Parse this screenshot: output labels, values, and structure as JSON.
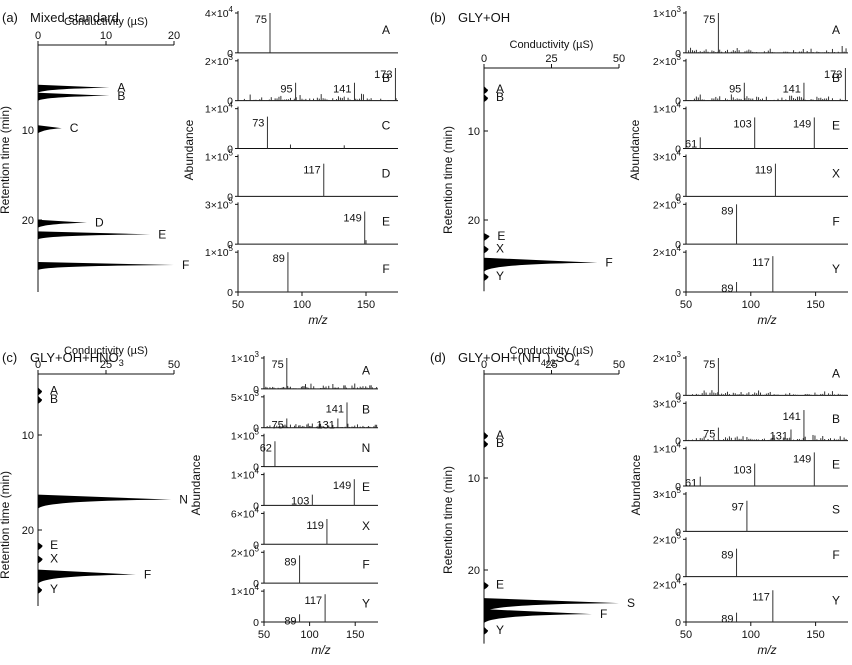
{
  "chart_data": [
    {
      "type": "area",
      "panel": "(a)",
      "title": "Mixed standard",
      "xlabel": "Conductivity (µS)",
      "ylabel": "Retention time (min)",
      "xlim": [
        0,
        20
      ],
      "ylim": [
        0,
        28
      ],
      "xticks": [
        "0",
        "10",
        "20"
      ],
      "yticks": [
        "10",
        "20"
      ],
      "yticks_values": [
        10,
        20
      ],
      "peaks": [
        {
          "label": "A",
          "rt": 5.3,
          "height": 10.5
        },
        {
          "label": "B",
          "rt": 6.2,
          "height": 10.5
        },
        {
          "label": "C",
          "rt": 9.8,
          "height": 3.5
        },
        {
          "label": "D",
          "rt": 20.3,
          "height": 7.2
        },
        {
          "label": "E",
          "rt": 21.6,
          "height": 16.5
        },
        {
          "label": "F",
          "rt": 25.0,
          "height": 20.0
        }
      ]
    },
    {
      "type": "bar",
      "panel": "(a)",
      "xlabel": "m/z",
      "ylabel": "Abundance",
      "xlim": [
        50,
        175
      ],
      "xticks": [
        "50",
        "100",
        "150"
      ],
      "spectra": [
        {
          "label": "A",
          "ymax_base": "4×10",
          "ymax_exp": "4",
          "peaks": [
            {
              "mz": 75,
              "rel": 1.0,
              "text": "75"
            }
          ]
        },
        {
          "label": "B",
          "ymax_base": "2×10",
          "ymax_exp": "3",
          "peaks": [
            {
              "mz": 95,
              "rel": 0.45,
              "text": "95"
            },
            {
              "mz": 141,
              "rel": 0.45,
              "text": "141"
            },
            {
              "mz": 173,
              "rel": 0.82,
              "text": "173"
            }
          ],
          "noise": true
        },
        {
          "label": "C",
          "ymax_base": "1×10",
          "ymax_exp": "4",
          "peaks": [
            {
              "mz": 73,
              "rel": 0.8,
              "text": "73"
            },
            {
              "mz": 91,
              "rel": 0.1,
              "text": ""
            },
            {
              "mz": 133,
              "rel": 0.08,
              "text": ""
            }
          ]
        },
        {
          "label": "D",
          "ymax_base": "1×10",
          "ymax_exp": "5",
          "peaks": [
            {
              "mz": 117,
              "rel": 0.82,
              "text": "117"
            }
          ]
        },
        {
          "label": "E",
          "ymax_base": "3×10",
          "ymax_exp": "5",
          "peaks": [
            {
              "mz": 149,
              "rel": 0.82,
              "text": "149"
            },
            {
              "mz": 150,
              "rel": 0.1,
              "text": ""
            }
          ]
        },
        {
          "label": "F",
          "ymax_base": "1×10",
          "ymax_exp": "5",
          "peaks": [
            {
              "mz": 89,
              "rel": 1.0,
              "text": "89"
            }
          ]
        }
      ]
    },
    {
      "type": "area",
      "panel": "(b)",
      "title": "GLY+OH",
      "xlabel": "Conductivity (µS)",
      "ylabel": "Retention time (min)",
      "xlim": [
        0,
        50
      ],
      "ylim": [
        0,
        28
      ],
      "xticks": [
        "0",
        "25",
        "50"
      ],
      "yticks": [
        "10",
        "20"
      ],
      "yticks_values": [
        10,
        20
      ],
      "peaks": [
        {
          "label": "A",
          "rt": 5.3,
          "height": 1.0
        },
        {
          "label": "B",
          "rt": 6.2,
          "height": 1.0
        },
        {
          "label": "E",
          "rt": 21.8,
          "height": 2.0
        },
        {
          "label": "X",
          "rt": 23.2,
          "height": 1.5
        },
        {
          "label": "F",
          "rt": 24.8,
          "height": 42.0
        },
        {
          "label": "Y",
          "rt": 26.3,
          "height": 1.5
        }
      ]
    },
    {
      "type": "bar",
      "panel": "(b)",
      "xlabel": "m/z",
      "ylabel": "Abundance",
      "xlim": [
        50,
        175
      ],
      "xticks": [
        "50",
        "100",
        "150"
      ],
      "spectra": [
        {
          "label": "A",
          "ymax_base": "1×10",
          "ymax_exp": "3",
          "peaks": [
            {
              "mz": 75,
              "rel": 1.0,
              "text": "75"
            }
          ],
          "noise": true
        },
        {
          "label": "B",
          "ymax_base": "2×10",
          "ymax_exp": "3",
          "peaks": [
            {
              "mz": 95,
              "rel": 0.45,
              "text": "95"
            },
            {
              "mz": 141,
              "rel": 0.45,
              "text": "141"
            },
            {
              "mz": 173,
              "rel": 0.82,
              "text": "173"
            }
          ],
          "noise": true
        },
        {
          "label": "E",
          "ymax_base": "1×10",
          "ymax_exp": "4",
          "peaks": [
            {
              "mz": 61,
              "rel": 0.28,
              "text": "61"
            },
            {
              "mz": 103,
              "rel": 0.78,
              "text": "103"
            },
            {
              "mz": 149,
              "rel": 0.78,
              "text": "149"
            }
          ]
        },
        {
          "label": "X",
          "ymax_base": "3×10",
          "ymax_exp": "4",
          "peaks": [
            {
              "mz": 119,
              "rel": 0.82,
              "text": "119"
            }
          ]
        },
        {
          "label": "F",
          "ymax_base": "2×10",
          "ymax_exp": "5",
          "peaks": [
            {
              "mz": 89,
              "rel": 1.0,
              "text": "89"
            }
          ]
        },
        {
          "label": "Y",
          "ymax_base": "2×10",
          "ymax_exp": "4",
          "peaks": [
            {
              "mz": 89,
              "rel": 0.25,
              "text": "89"
            },
            {
              "mz": 117,
              "rel": 0.9,
              "text": "117"
            }
          ]
        }
      ]
    },
    {
      "type": "area",
      "panel": "(c)",
      "title_parts": [
        "GLY+OH+HNO",
        "3"
      ],
      "xlabel": "Conductivity (µS)",
      "ylabel": "Retention time (min)",
      "xlim": [
        0,
        50
      ],
      "ylim": [
        0,
        28
      ],
      "xticks": [
        "0",
        "25",
        "50"
      ],
      "yticks": [
        "10",
        "20"
      ],
      "yticks_values": [
        10,
        20
      ],
      "peaks": [
        {
          "label": "A",
          "rt": 5.3,
          "height": 1.0
        },
        {
          "label": "B",
          "rt": 6.2,
          "height": 1.0
        },
        {
          "label": "N",
          "rt": 16.8,
          "height": 49.0
        },
        {
          "label": "E",
          "rt": 21.6,
          "height": 1.5
        },
        {
          "label": "X",
          "rt": 23.0,
          "height": 1.5
        },
        {
          "label": "F",
          "rt": 24.7,
          "height": 36.0
        },
        {
          "label": "Y",
          "rt": 26.2,
          "height": 1.0
        }
      ]
    },
    {
      "type": "bar",
      "panel": "(c)",
      "xlabel": "m/z",
      "ylabel": "Abundance",
      "xlim": [
        50,
        175
      ],
      "xticks": [
        "50",
        "100",
        "150"
      ],
      "spectra": [
        {
          "label": "A",
          "ymax_base": "1×10",
          "ymax_exp": "3",
          "peaks": [
            {
              "mz": 75,
              "rel": 1.0,
              "text": "75"
            }
          ],
          "noise": true
        },
        {
          "label": "B",
          "ymax_base": "5×10",
          "ymax_exp": "3",
          "peaks": [
            {
              "mz": 75,
              "rel": 0.3,
              "text": "75"
            },
            {
              "mz": 131,
              "rel": 0.3,
              "text": "131"
            },
            {
              "mz": 141,
              "rel": 0.82,
              "text": "141"
            }
          ],
          "noise": true
        },
        {
          "label": "N",
          "ymax_base": "1×10",
          "ymax_exp": "5",
          "peaks": [
            {
              "mz": 62,
              "rel": 0.82,
              "text": "62"
            }
          ]
        },
        {
          "label": "E",
          "ymax_base": "1×10",
          "ymax_exp": "4",
          "peaks": [
            {
              "mz": 103,
              "rel": 0.35,
              "text": "103"
            },
            {
              "mz": 149,
              "rel": 0.85,
              "text": "149"
            }
          ]
        },
        {
          "label": "X",
          "ymax_base": "6×10",
          "ymax_exp": "4",
          "peaks": [
            {
              "mz": 119,
              "rel": 0.82,
              "text": "119"
            }
          ]
        },
        {
          "label": "F",
          "ymax_base": "2×10",
          "ymax_exp": "5",
          "peaks": [
            {
              "mz": 89,
              "rel": 0.9,
              "text": "89"
            }
          ]
        },
        {
          "label": "Y",
          "ymax_base": "1×10",
          "ymax_exp": "4",
          "peaks": [
            {
              "mz": 89,
              "rel": 0.25,
              "text": "89"
            },
            {
              "mz": 117,
              "rel": 0.9,
              "text": "117"
            }
          ]
        }
      ]
    },
    {
      "type": "area",
      "panel": "(d)",
      "title_parts": [
        "GLY+OH+(NH",
        "4",
        ")",
        "2",
        "SO",
        "4"
      ],
      "xlabel": "Conductivity (µS)",
      "ylabel": "Retention time (min)",
      "xlim": [
        0,
        50
      ],
      "ylim": [
        0,
        28
      ],
      "xticks": [
        "0",
        "25",
        "50"
      ],
      "yticks": [
        "10",
        "20"
      ],
      "yticks_values": [
        10,
        20
      ],
      "peaks": [
        {
          "label": "A",
          "rt": 5.3,
          "height": 1.0
        },
        {
          "label": "B",
          "rt": 6.2,
          "height": 1.0
        },
        {
          "label": "E",
          "rt": 21.6,
          "height": 1.5
        },
        {
          "label": "S",
          "rt": 23.6,
          "height": 50.0
        },
        {
          "label": "F",
          "rt": 24.8,
          "height": 40.0
        },
        {
          "label": "Y",
          "rt": 26.5,
          "height": 1.0
        }
      ]
    },
    {
      "type": "bar",
      "panel": "(d)",
      "xlabel": "m/z",
      "ylabel": "Abundance",
      "xlim": [
        50,
        175
      ],
      "xticks": [
        "50",
        "100",
        "150"
      ],
      "spectra": [
        {
          "label": "A",
          "ymax_base": "2×10",
          "ymax_exp": "3",
          "peaks": [
            {
              "mz": 75,
              "rel": 1.0,
              "text": "75"
            }
          ],
          "noise": true
        },
        {
          "label": "B",
          "ymax_base": "3×10",
          "ymax_exp": "3",
          "peaks": [
            {
              "mz": 75,
              "rel": 0.35,
              "text": "75"
            },
            {
              "mz": 131,
              "rel": 0.3,
              "text": "131"
            },
            {
              "mz": 141,
              "rel": 0.82,
              "text": "141"
            }
          ],
          "noise": true
        },
        {
          "label": "E",
          "ymax_base": "1×10",
          "ymax_exp": "4",
          "peaks": [
            {
              "mz": 61,
              "rel": 0.25,
              "text": "61"
            },
            {
              "mz": 103,
              "rel": 0.6,
              "text": "103"
            },
            {
              "mz": 149,
              "rel": 0.9,
              "text": "149"
            }
          ]
        },
        {
          "label": "S",
          "ymax_base": "3×10",
          "ymax_exp": "5",
          "peaks": [
            {
              "mz": 97,
              "rel": 0.82,
              "text": "97"
            }
          ]
        },
        {
          "label": "F",
          "ymax_base": "2×10",
          "ymax_exp": "5",
          "peaks": [
            {
              "mz": 89,
              "rel": 0.75,
              "text": "89"
            }
          ]
        },
        {
          "label": "Y",
          "ymax_base": "2×10",
          "ymax_exp": "4",
          "peaks": [
            {
              "mz": 89,
              "rel": 0.25,
              "text": "89"
            },
            {
              "mz": 117,
              "rel": 0.85,
              "text": "117"
            }
          ]
        }
      ]
    }
  ]
}
